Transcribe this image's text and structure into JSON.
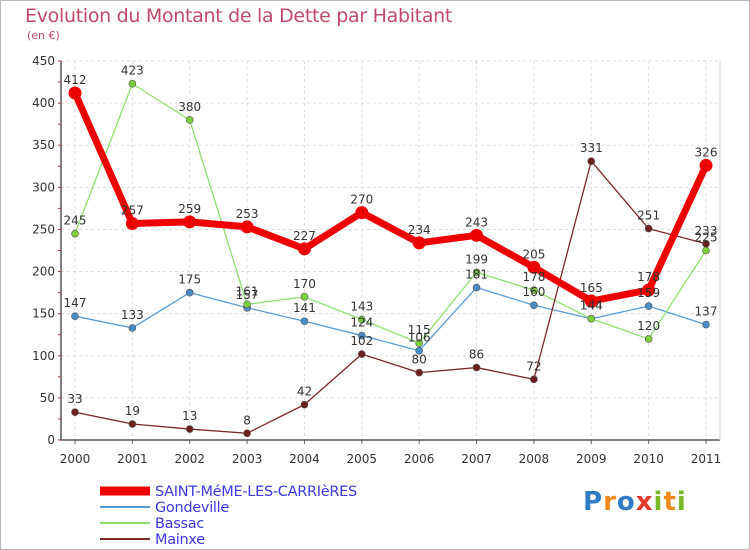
{
  "title": "Evolution du Montant de la Dette par Habitant",
  "subtitle": "(en €)",
  "brand": {
    "text": "Proxiti",
    "letters": [
      {
        "ch": "P",
        "color": "#2e7cc4"
      },
      {
        "ch": "r",
        "color": "#f08a1c"
      },
      {
        "ch": "o",
        "color": "#2e7cc4"
      },
      {
        "ch": "x",
        "color": "#e23a2b"
      },
      {
        "ch": "i",
        "color": "#79b828"
      },
      {
        "ch": "t",
        "color": "#f08a1c"
      },
      {
        "ch": "i",
        "color": "#79b828"
      }
    ]
  },
  "chart_data": {
    "type": "line",
    "x": [
      "2000",
      "2001",
      "2002",
      "2003",
      "2004",
      "2005",
      "2006",
      "2007",
      "2008",
      "2009",
      "2010",
      "2011"
    ],
    "ylim": [
      0,
      450
    ],
    "yticks": [
      0,
      50,
      100,
      150,
      200,
      250,
      300,
      350,
      400,
      450
    ],
    "grid": true,
    "legend_position": "bottom-left",
    "series": [
      {
        "name": "SAINT-MéME-LES-CARRIèRES",
        "color": "#ee0000",
        "width": 7,
        "marker_color": "#ee0000",
        "values": [
          412,
          257,
          259,
          253,
          227,
          270,
          234,
          243,
          205,
          165,
          178,
          326
        ]
      },
      {
        "name": "Gondeville",
        "color": "#5b9bd5",
        "width": 1.3,
        "marker_color": "#4a8cc8",
        "values": [
          147,
          133,
          175,
          157,
          141,
          124,
          106,
          181,
          160,
          144,
          159,
          137
        ]
      },
      {
        "name": "Bassac",
        "color": "#90e070",
        "width": 1.3,
        "marker_color": "#7ccf3c",
        "values": [
          245,
          423,
          380,
          161,
          170,
          143,
          115,
          199,
          178,
          144,
          120,
          225
        ]
      },
      {
        "name": "Mainxe",
        "color": "#7a2828",
        "width": 1.3,
        "marker_color": "#6b1f1f",
        "values": [
          33,
          19,
          13,
          8,
          42,
          102,
          80,
          86,
          72,
          331,
          251,
          233
        ]
      }
    ]
  }
}
